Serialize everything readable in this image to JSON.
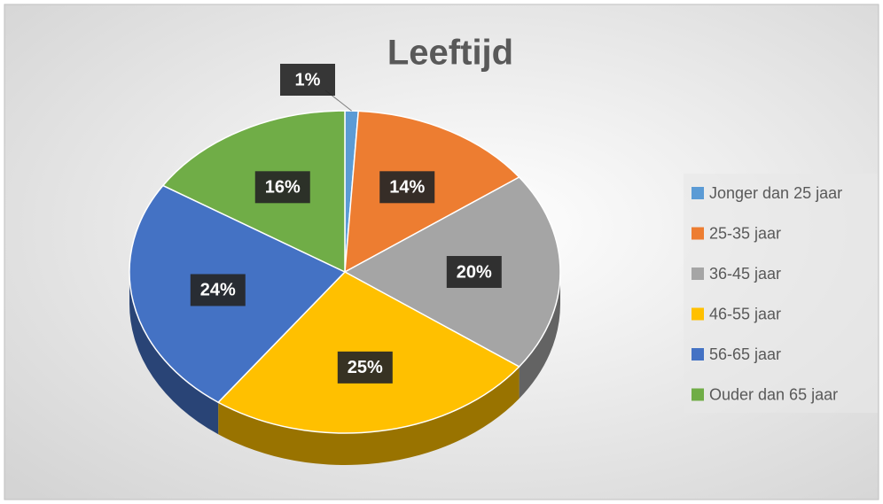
{
  "chart_data": {
    "type": "pie",
    "title": "Leeftijd",
    "categories": [
      "Jonger dan 25 jaar",
      "25-35 jaar",
      "36-45 jaar",
      "46-55 jaar",
      "56-65 jaar",
      "Ouder dan 65 jaar"
    ],
    "values": [
      1,
      14,
      20,
      25,
      24,
      16
    ],
    "value_labels": [
      "1%",
      "14%",
      "20%",
      "25%",
      "24%",
      "16%"
    ],
    "colors": [
      "#5b9bd5",
      "#ed7d31",
      "#a5a5a5",
      "#ffc000",
      "#4472c4",
      "#70ad47"
    ],
    "legend": "right"
  }
}
